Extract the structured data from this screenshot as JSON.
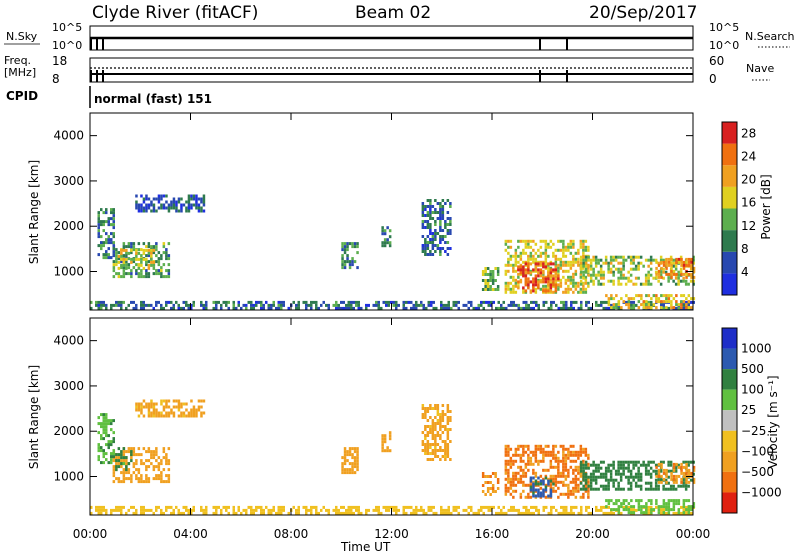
{
  "header": {
    "station": "Clyde River (fitACF)",
    "beam": "Beam 02",
    "date": "20/Sep/2017"
  },
  "status_panel": {
    "nsky_label": "N.Sky",
    "nsky_ticks": [
      "10^5",
      "10^0"
    ],
    "nsearch_label": "N.Search",
    "nsearch_ticks": [
      "10^5",
      "10^0"
    ],
    "freq_label": "Freq.",
    "freq_unit": "[MHz]",
    "freq_ticks": [
      "18",
      "8"
    ],
    "nave_label": "Nave",
    "nave_ticks": [
      "60",
      "0"
    ],
    "cpid_label": "CPID",
    "cpid_value": "normal (fast) 151"
  },
  "colors": {
    "power_scale": [
      "#1f2fe0",
      "#2848b0",
      "#2e7a4e",
      "#5cae4e",
      "#e0d020",
      "#f0a020",
      "#f07010",
      "#d82020"
    ],
    "velocity_scale": [
      "#1e2ec8",
      "#2c5ab0",
      "#308040",
      "#60c040",
      "#c0c0c0",
      "#f0c020",
      "#f0a020",
      "#f07010",
      "#e02010"
    ]
  },
  "chart_data": [
    {
      "type": "heatmap",
      "panel": "power",
      "ylabel": "Slant Range [km]",
      "ylim": [
        150,
        4500
      ],
      "yticks": [
        "1000",
        "2000",
        "3000",
        "4000"
      ],
      "xlim": [
        0,
        24
      ],
      "xticks": [
        "00:00",
        "04:00",
        "08:00",
        "12:00",
        "16:00",
        "20:00",
        "00:00"
      ],
      "colorbar": {
        "label": "Power [dB]",
        "ticks": [
          "4",
          "8",
          "12",
          "16",
          "20",
          "24",
          "28"
        ],
        "range": [
          0,
          30
        ]
      },
      "regions": [
        {
          "t0": 0.0,
          "t1": 24.0,
          "r0": 180,
          "r1": 350,
          "level": 8
        },
        {
          "t0": 0.9,
          "t1": 3.1,
          "r0": 900,
          "r1": 1650,
          "level": 12
        },
        {
          "t0": 1.1,
          "t1": 2.5,
          "r0": 1050,
          "r1": 1500,
          "level": 18
        },
        {
          "t0": 0.3,
          "t1": 0.9,
          "r0": 1300,
          "r1": 2400,
          "level": 10
        },
        {
          "t0": 1.8,
          "t1": 4.5,
          "r0": 2350,
          "r1": 2700,
          "level": 7
        },
        {
          "t0": 10.0,
          "t1": 10.6,
          "r0": 1100,
          "r1": 1650,
          "level": 11
        },
        {
          "t0": 11.6,
          "t1": 11.9,
          "r0": 1600,
          "r1": 2000,
          "level": 9
        },
        {
          "t0": 13.2,
          "t1": 14.3,
          "r0": 1400,
          "r1": 2600,
          "level": 8
        },
        {
          "t0": 15.6,
          "t1": 16.2,
          "r0": 600,
          "r1": 1100,
          "level": 14
        },
        {
          "t0": 16.5,
          "t1": 19.8,
          "r0": 550,
          "r1": 1700,
          "level": 18
        },
        {
          "t0": 17.0,
          "t1": 18.6,
          "r0": 600,
          "r1": 1200,
          "level": 26
        },
        {
          "t0": 19.5,
          "t1": 24.0,
          "r0": 700,
          "r1": 1350,
          "level": 16
        },
        {
          "t0": 22.5,
          "t1": 24.0,
          "r0": 900,
          "r1": 1300,
          "level": 24
        },
        {
          "t0": 20.5,
          "t1": 24.0,
          "r0": 200,
          "r1": 500,
          "level": 20
        }
      ]
    },
    {
      "type": "heatmap",
      "panel": "velocity",
      "ylabel": "Slant Range [km]",
      "ylim": [
        150,
        4500
      ],
      "yticks": [
        "1000",
        "2000",
        "3000",
        "4000"
      ],
      "xlim": [
        0,
        24
      ],
      "xticks": [
        "00:00",
        "04:00",
        "08:00",
        "12:00",
        "16:00",
        "20:00",
        "00:00"
      ],
      "xlabel": "Time UT",
      "colorbar": {
        "label": "Velocity [m s⁻¹]",
        "ticks": [
          "1000",
          "500",
          "100",
          "25",
          "−25",
          "−100",
          "−500",
          "−1000"
        ]
      },
      "regions": [
        {
          "t0": 0.0,
          "t1": 24.0,
          "r0": 180,
          "r1": 350,
          "level": -60
        },
        {
          "t0": 0.9,
          "t1": 3.1,
          "r0": 900,
          "r1": 1650,
          "level": -300
        },
        {
          "t0": 1.0,
          "t1": 1.6,
          "r0": 1150,
          "r1": 1650,
          "level": 150
        },
        {
          "t0": 0.3,
          "t1": 0.9,
          "r0": 1300,
          "r1": 2400,
          "level": 80
        },
        {
          "t0": 1.8,
          "t1": 4.5,
          "r0": 2350,
          "r1": 2700,
          "level": -150
        },
        {
          "t0": 10.0,
          "t1": 10.6,
          "r0": 1100,
          "r1": 1650,
          "level": -300
        },
        {
          "t0": 11.6,
          "t1": 11.9,
          "r0": 1600,
          "r1": 2000,
          "level": -300
        },
        {
          "t0": 13.2,
          "t1": 14.3,
          "r0": 1400,
          "r1": 2600,
          "level": -150
        },
        {
          "t0": 15.6,
          "t1": 16.2,
          "r0": 600,
          "r1": 1100,
          "level": -400
        },
        {
          "t0": 16.5,
          "t1": 19.8,
          "r0": 550,
          "r1": 1700,
          "level": -600
        },
        {
          "t0": 17.5,
          "t1": 18.4,
          "r0": 600,
          "r1": 1000,
          "level": 600
        },
        {
          "t0": 19.5,
          "t1": 24.0,
          "r0": 700,
          "r1": 1350,
          "level": 300
        },
        {
          "t0": 22.5,
          "t1": 24.0,
          "r0": 900,
          "r1": 1300,
          "level": -400
        },
        {
          "t0": 20.5,
          "t1": 24.0,
          "r0": 200,
          "r1": 500,
          "level": 60
        }
      ]
    }
  ]
}
